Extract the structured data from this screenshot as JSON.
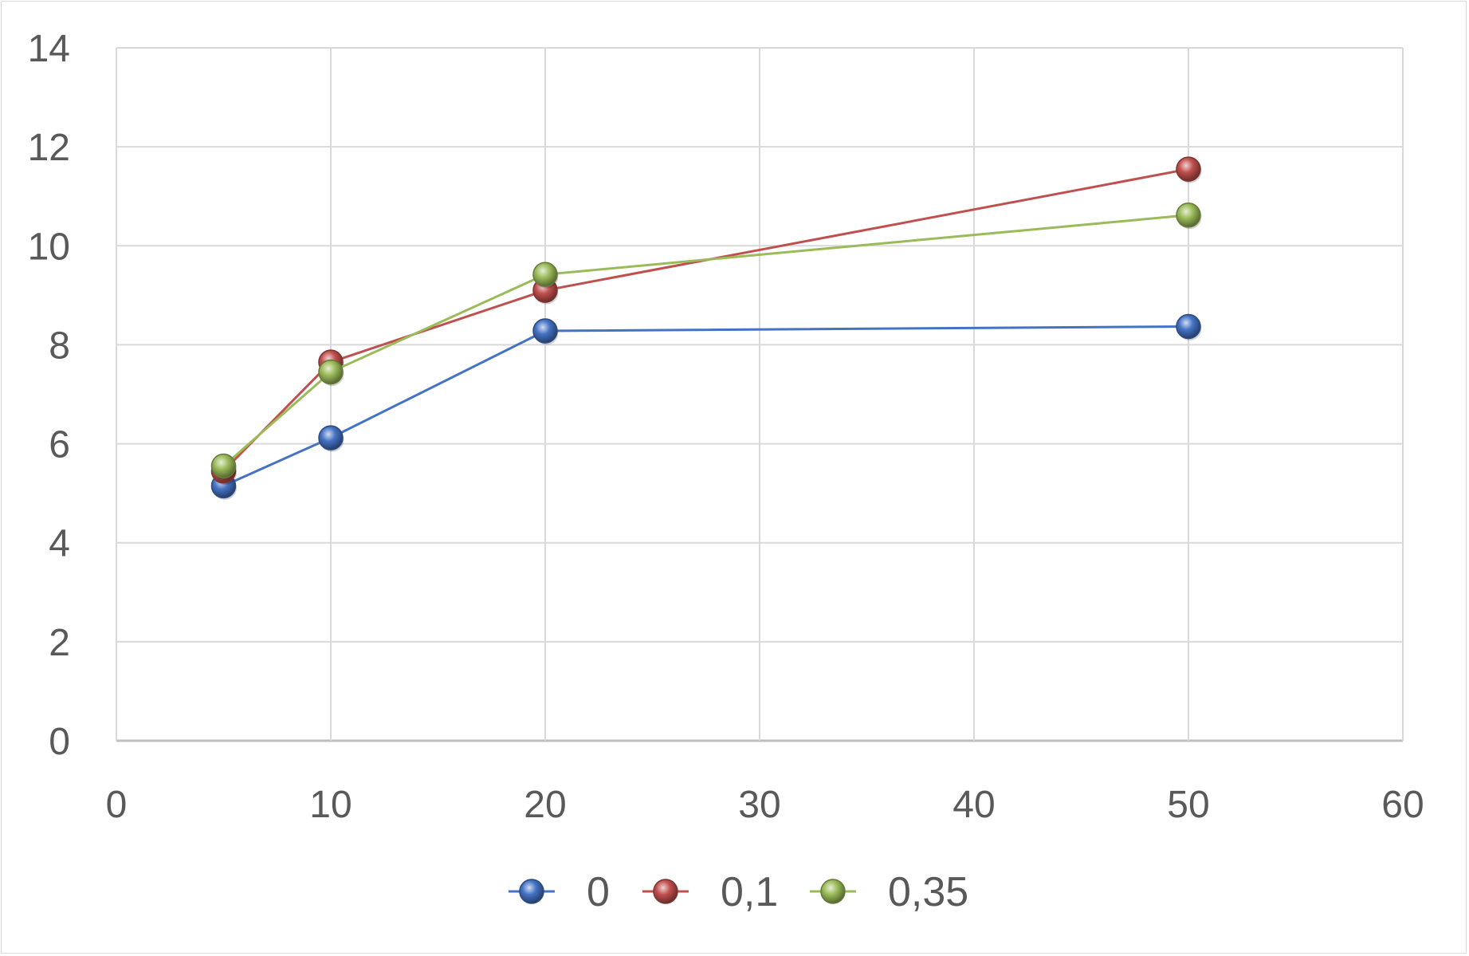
{
  "chart_data": {
    "type": "scatter",
    "title": "",
    "xlabel": "",
    "ylabel": "",
    "xlim": [
      0,
      60
    ],
    "ylim": [
      0,
      14
    ],
    "xticks": [
      0,
      10,
      20,
      30,
      40,
      50,
      60
    ],
    "yticks": [
      0,
      2,
      4,
      6,
      8,
      10,
      12,
      14
    ],
    "grid": true,
    "legend_position": "bottom",
    "series": [
      {
        "name": "0",
        "color": "#4472c4",
        "points": [
          [
            5,
            5.15
          ],
          [
            10,
            6.12
          ],
          [
            20,
            8.28
          ],
          [
            50,
            8.37
          ]
        ]
      },
      {
        "name": "0,1",
        "color": "#c0504d",
        "points": [
          [
            5,
            5.45
          ],
          [
            10,
            7.65
          ],
          [
            20,
            9.1
          ],
          [
            50,
            11.55
          ]
        ]
      },
      {
        "name": "0,35",
        "color": "#9bbb59",
        "points": [
          [
            5,
            5.55
          ],
          [
            10,
            7.45
          ],
          [
            20,
            9.42
          ],
          [
            50,
            10.62
          ]
        ]
      }
    ]
  }
}
